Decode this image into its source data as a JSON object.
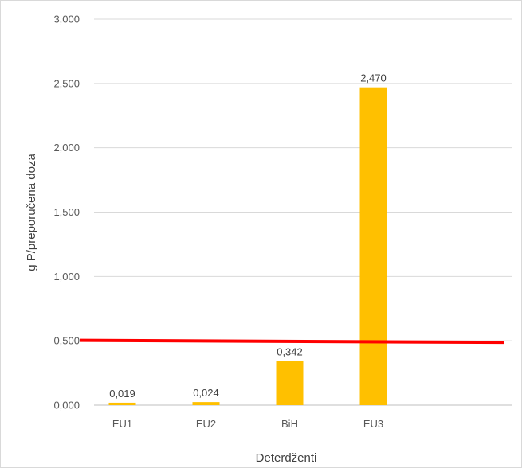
{
  "chart_data": {
    "type": "bar",
    "categories": [
      "EU1",
      "EU2",
      "BiH",
      "EU3"
    ],
    "values": [
      0.019,
      0.024,
      0.342,
      2.47
    ],
    "data_labels": [
      "0,019",
      "0,024",
      "0,342",
      "2,470"
    ],
    "title": "",
    "xlabel": "Deterdženti",
    "ylabel": "g P/preporučena doza",
    "ylim": [
      0,
      3
    ],
    "yticks": [
      0,
      0.5,
      1,
      1.5,
      2,
      2.5,
      3
    ],
    "ytick_labels": [
      "0,000",
      "0,500",
      "1,000",
      "1,500",
      "2,000",
      "2,500",
      "3,000"
    ],
    "reference_line": {
      "value": 0.5,
      "color": "#ff0000"
    },
    "bar_color": "#ffc000",
    "grid": true,
    "legend": "none"
  }
}
